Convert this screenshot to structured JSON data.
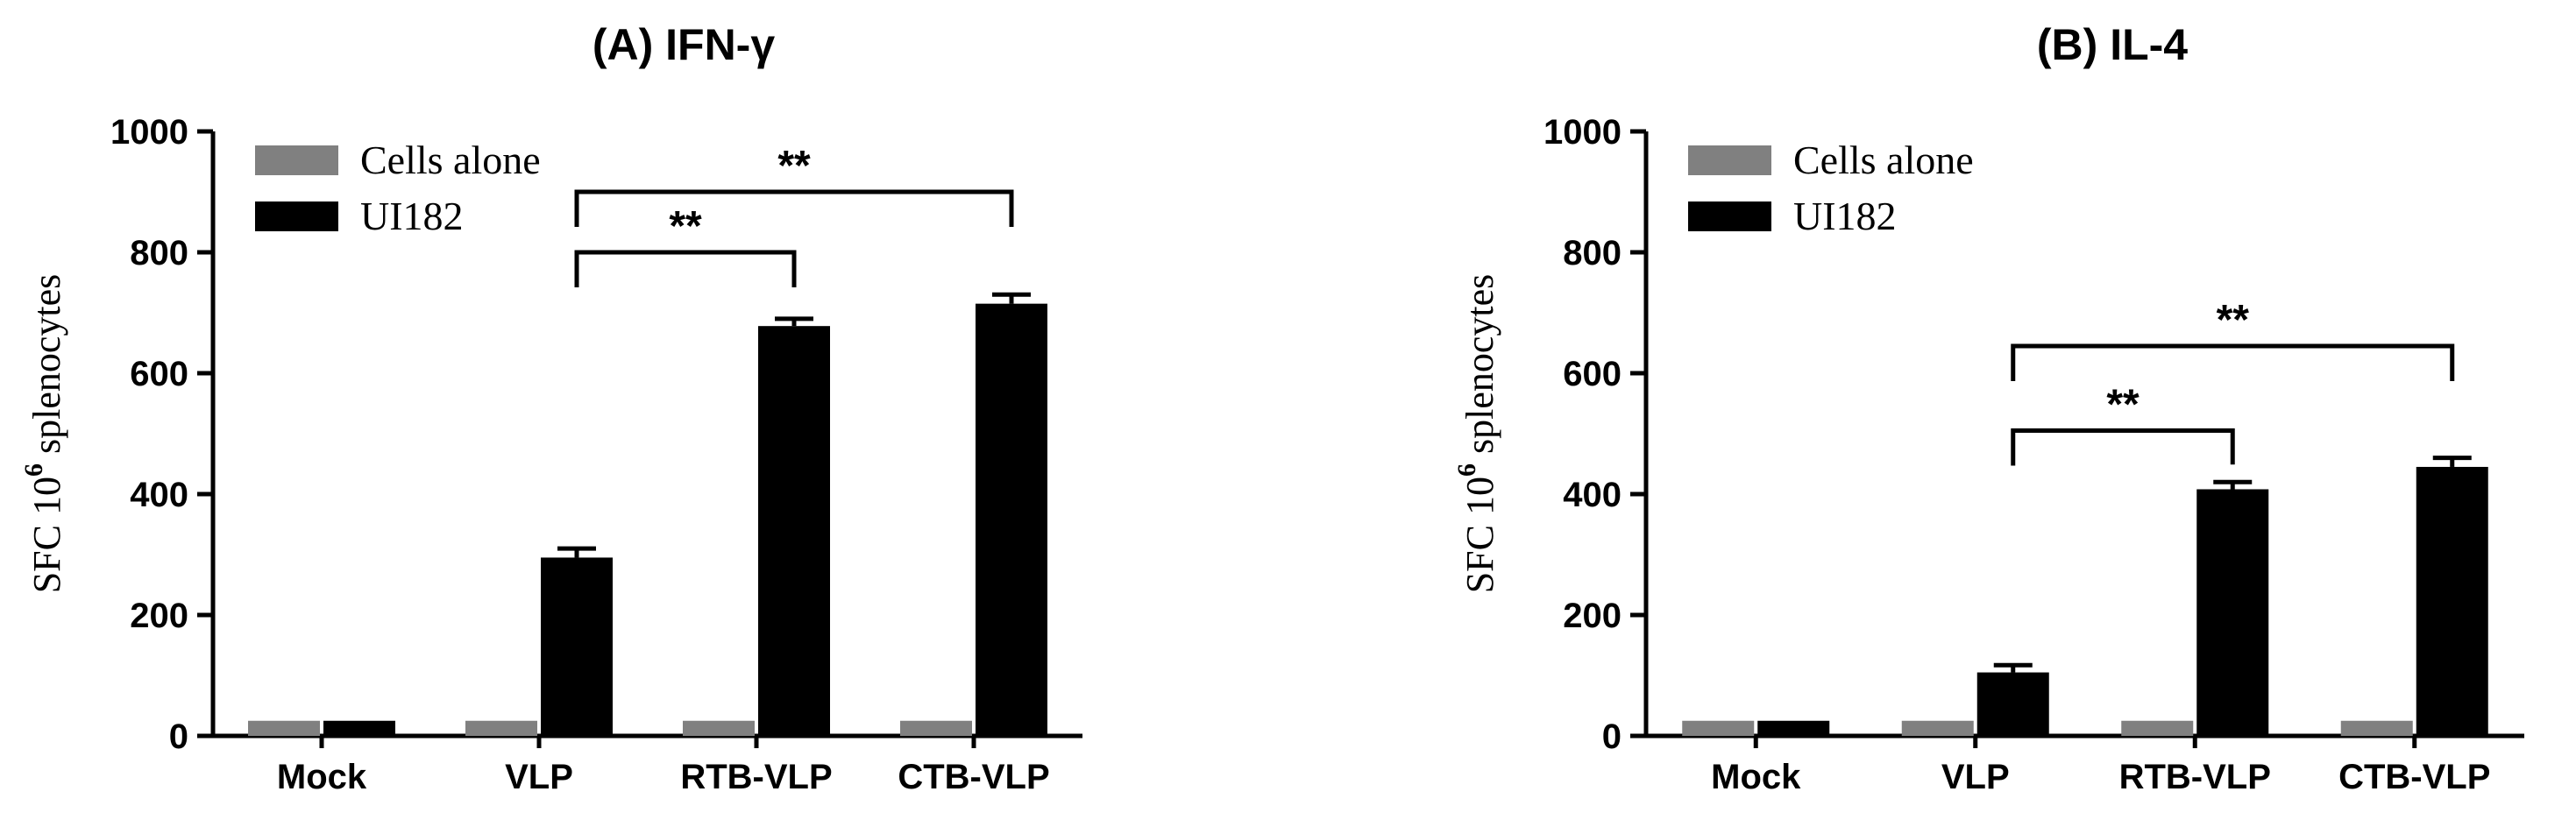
{
  "chart_data": [
    {
      "type": "bar",
      "title": "(A) IFN-γ",
      "ylabel_prefix": "SFC 10",
      "ylabel_sup": "6",
      "ylabel_suffix": " splenocytes",
      "categories": [
        "Mock",
        "VLP",
        "RTB-VLP",
        "CTB-VLP"
      ],
      "ylim": [
        0,
        1000
      ],
      "yticks": [
        0,
        200,
        400,
        600,
        800,
        1000
      ],
      "legend_position": "top-left",
      "series": [
        {
          "name": "Cells alone",
          "color": "#808080",
          "values": [
            25,
            25,
            25,
            25
          ],
          "errors": [
            0,
            0,
            0,
            0
          ]
        },
        {
          "name": "UI182",
          "color": "#000000",
          "values": [
            25,
            295,
            678,
            715
          ],
          "errors": [
            0,
            15,
            12,
            15
          ]
        }
      ],
      "significance": [
        {
          "from": 1,
          "to": 2,
          "label": "**"
        },
        {
          "from": 1,
          "to": 3,
          "label": "**"
        }
      ]
    },
    {
      "type": "bar",
      "title": "(B) IL-4",
      "ylabel_prefix": "SFC 10",
      "ylabel_sup": "6",
      "ylabel_suffix": " splenocytes",
      "categories": [
        "Mock",
        "VLP",
        "RTB-VLP",
        "CTB-VLP"
      ],
      "ylim": [
        0,
        1000
      ],
      "yticks": [
        0,
        200,
        400,
        600,
        800,
        1000
      ],
      "legend_position": "top-left",
      "series": [
        {
          "name": "Cells alone",
          "color": "#808080",
          "values": [
            25,
            25,
            25,
            25
          ],
          "errors": [
            0,
            0,
            0,
            0
          ]
        },
        {
          "name": "UI182",
          "color": "#000000",
          "values": [
            25,
            105,
            408,
            445
          ],
          "errors": [
            0,
            12,
            12,
            15
          ]
        }
      ],
      "significance": [
        {
          "from": 1,
          "to": 2,
          "label": "**"
        },
        {
          "from": 1,
          "to": 3,
          "label": "**"
        }
      ]
    }
  ]
}
